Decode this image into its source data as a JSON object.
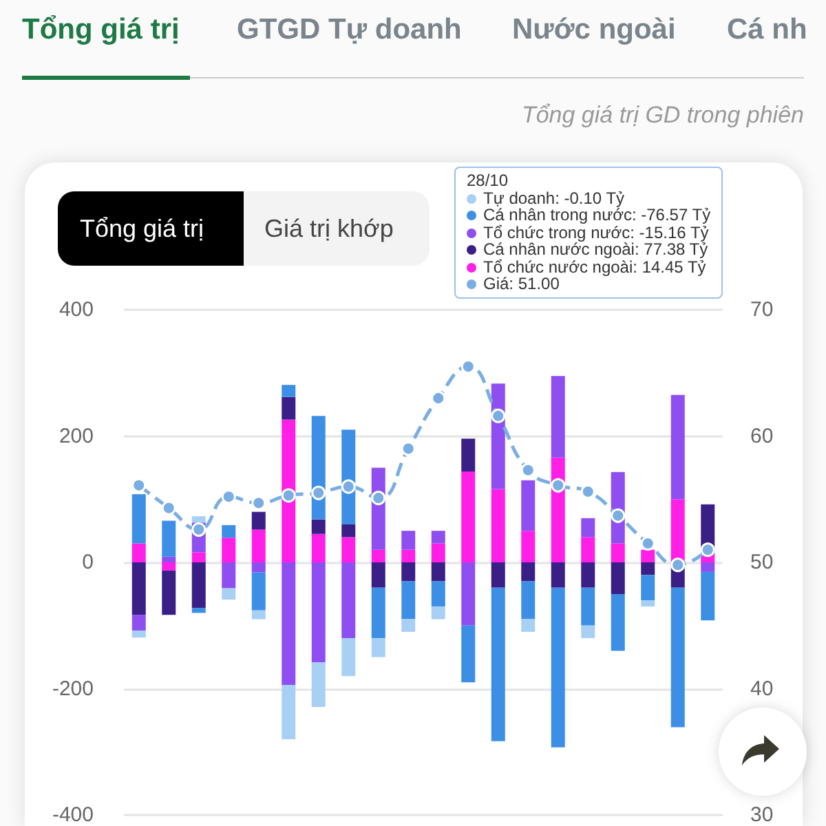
{
  "chart_data": {
    "type": "bar",
    "subtitle": "Tổng giá trị GD trong phiên",
    "annotations": [
      "Tổng giá trị",
      "GTGD Tự doanh",
      "Nước ngoài",
      "Cá nh",
      "Tổng giá trị",
      "Giá trị khớp",
      "28/10",
      "Tự doanh: -0.10 Tỷ",
      "Cá nhân trong nước: -76.57 Tỷ",
      "Tổ chức trong nước: -15.16 Tỷ",
      "Cá nhân nước ngoài: 77.38 Tỷ",
      "Tổ chức nước ngoài: 14.45 Tỷ",
      "Giá: 51.00"
    ],
    "categories": [
      null,
      null,
      null,
      null,
      null,
      null,
      null,
      null,
      null,
      null,
      null,
      null,
      null,
      null,
      null,
      null,
      null,
      null,
      null,
      null
    ],
    "stacked": true,
    "series": [
      {
        "color": "#ff1fe6",
        "values": [
          30,
          -13,
          16,
          39,
          52,
          226,
          45,
          40,
          20,
          20,
          30,
          144,
          116,
          50,
          166,
          40,
          30,
          20,
          100,
          14.45
        ]
      },
      {
        "color": "#3a1f86",
        "values": [
          -83,
          -70,
          -72,
          null,
          28,
          36,
          23,
          20,
          -40,
          -30,
          -30,
          52,
          -40,
          -30,
          -40,
          -40,
          -50,
          -20,
          -40,
          77.38
        ]
      },
      {
        "color": "#8f4ff0",
        "values": [
          -25,
          9,
          47,
          -41,
          -16,
          -194,
          -158,
          -120,
          130,
          30,
          20,
          -100,
          167,
          80,
          129,
          30,
          113,
          null,
          165,
          -15.16
        ]
      },
      {
        "color": "#3d8fe6",
        "values": [
          78,
          57,
          -8,
          20,
          -60,
          19,
          164,
          150,
          -80,
          -60,
          -40,
          -90,
          -243,
          -60,
          -253,
          -60,
          -90,
          -40,
          -221,
          -76.57
        ]
      },
      {
        "color": "#a8d0f5",
        "values": [
          -11,
          null,
          10,
          -18,
          -14,
          -86,
          -71,
          -60,
          -30,
          -20,
          -20,
          null,
          null,
          -20,
          null,
          -20,
          null,
          -10,
          null,
          -0.1
        ]
      },
      {
        "type": "line",
        "axis": "y2",
        "color": "#7aaee3",
        "marker": "circle",
        "line_style": "dashed",
        "values": [
          56.1,
          54.3,
          52.6,
          55.2,
          54.7,
          55.3,
          55.5,
          56.0,
          55.1,
          59.0,
          63.0,
          65.5,
          61.6,
          57.3,
          56.1,
          55.6,
          53.7,
          51.5,
          49.8,
          51.0
        ]
      }
    ],
    "ylim": [
      -400,
      400
    ],
    "yticks": [
      -400,
      -200,
      0,
      200,
      400
    ],
    "y2lim": [
      30,
      70
    ],
    "y2ticks": [
      30,
      40,
      50,
      60,
      70
    ],
    "grid": "y",
    "tick_labels": "y"
  }
}
